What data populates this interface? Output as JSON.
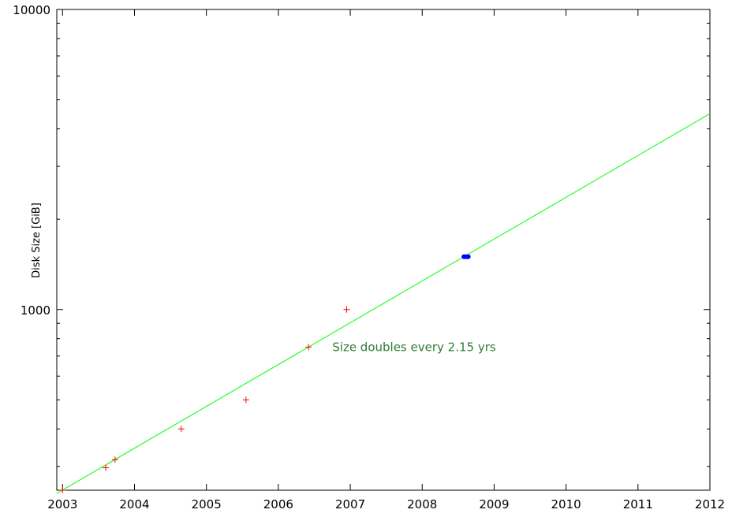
{
  "chart_data": {
    "type": "scatter",
    "title": "",
    "xlabel": "",
    "ylabel": "Disk Size [GiB]",
    "xlim": [
      2002.92,
      2012
    ],
    "ylim": [
      250,
      10000
    ],
    "y_scale": "log",
    "x_ticks": [
      "2003",
      "2004",
      "2005",
      "2006",
      "2007",
      "2008",
      "2009",
      "2010",
      "2011",
      "2012"
    ],
    "y_ticks": [
      "1000",
      "10000"
    ],
    "grid": false,
    "colors": {
      "points": "#ff0000",
      "fit": "#00ff00",
      "highlight": "#0000ff",
      "annotation": "#2e7d32"
    },
    "series": [
      {
        "type": "scatter",
        "marker": "plus",
        "x": [
          2003.0,
          2003.6,
          2003.73,
          2004.65,
          2005.55,
          2006.42,
          2006.95
        ],
        "y": [
          250,
          297,
          316,
          400,
          500,
          750,
          1000
        ]
      },
      {
        "type": "line",
        "x": [
          2002.92,
          2012.0
        ],
        "y": [
          244,
          4495
        ]
      },
      {
        "type": "scatter",
        "marker": "dot",
        "x": [
          2008.58,
          2008.6,
          2008.62,
          2008.64
        ],
        "y": [
          1500,
          1500,
          1500,
          1500
        ]
      }
    ],
    "annotations": [
      {
        "text": "Size doubles every 2.15 yrs",
        "x": 2006.75,
        "y": 750
      }
    ]
  }
}
